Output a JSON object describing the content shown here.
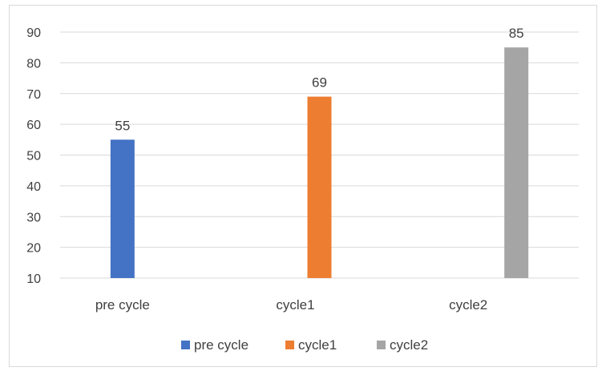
{
  "chart_data": {
    "type": "bar",
    "categories": [
      "pre cycle",
      "cycle1",
      "cycle2"
    ],
    "series": [
      {
        "name": "pre cycle",
        "color": "#4472C4",
        "values": [
          55,
          null,
          null
        ]
      },
      {
        "name": "cycle1",
        "color": "#ED7D31",
        "values": [
          null,
          69,
          null
        ]
      },
      {
        "name": "cycle2",
        "color": "#A5A5A5",
        "values": [
          null,
          null,
          85
        ]
      }
    ],
    "data_labels": [
      "55",
      "69",
      "85"
    ],
    "yticks": [
      10,
      20,
      30,
      40,
      50,
      60,
      70,
      80,
      90
    ],
    "ylim": [
      10,
      90
    ],
    "grid": true,
    "legend": "bottom"
  }
}
